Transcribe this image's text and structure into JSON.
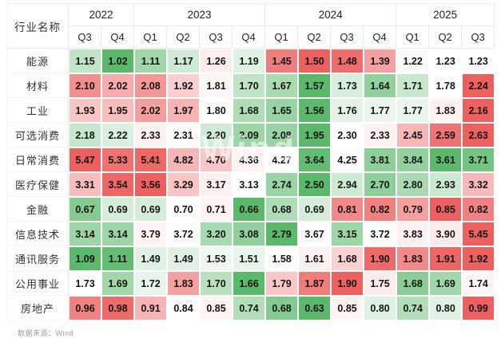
{
  "watermark": {
    "text": "Wind"
  },
  "footer": {
    "source_note": "数据来源：Wind"
  },
  "chart_data": {
    "type": "heatmap",
    "corner_label": "行业名称",
    "year_groups": [
      {
        "label": "2022",
        "span": 2
      },
      {
        "label": "2023",
        "span": 4
      },
      {
        "label": "2024",
        "span": 4
      },
      {
        "label": "2025",
        "span": 3
      }
    ],
    "quarters": [
      "Q3",
      "Q4",
      "Q1",
      "Q2",
      "Q3",
      "Q4",
      "Q1",
      "Q2",
      "Q3",
      "Q4",
      "Q1",
      "Q2",
      "Q3"
    ],
    "rows": [
      {
        "label": "能源",
        "values": [
          1.15,
          1.02,
          1.11,
          1.17,
          1.26,
          1.19,
          1.45,
          1.5,
          1.48,
          1.39,
          1.22,
          1.23,
          1.23
        ]
      },
      {
        "label": "材料",
        "values": [
          2.1,
          2.02,
          2.08,
          1.92,
          1.81,
          1.7,
          1.67,
          1.57,
          1.73,
          1.64,
          1.71,
          1.78,
          2.24
        ]
      },
      {
        "label": "工业",
        "values": [
          1.93,
          1.95,
          2.02,
          1.97,
          1.8,
          1.68,
          1.65,
          1.56,
          1.76,
          1.77,
          1.77,
          1.83,
          2.16
        ]
      },
      {
        "label": "可选消费",
        "values": [
          2.18,
          2.22,
          2.33,
          2.31,
          2.2,
          2.09,
          2.08,
          1.95,
          2.3,
          2.33,
          2.45,
          2.59,
          2.63
        ]
      },
      {
        "label": "日常消费",
        "values": [
          5.47,
          5.33,
          5.41,
          4.82,
          4.7,
          4.36,
          4.27,
          3.64,
          4.25,
          3.81,
          3.84,
          3.61,
          3.71
        ]
      },
      {
        "label": "医疗保健",
        "values": [
          3.31,
          3.54,
          3.56,
          3.29,
          3.17,
          3.13,
          2.74,
          2.5,
          2.94,
          2.7,
          2.8,
          2.93,
          3.32
        ]
      },
      {
        "label": "金融",
        "values": [
          0.67,
          0.69,
          0.69,
          0.7,
          0.71,
          0.66,
          0.68,
          0.69,
          0.81,
          0.82,
          0.79,
          0.85,
          0.82
        ]
      },
      {
        "label": "信息技术",
        "values": [
          3.14,
          3.14,
          3.79,
          3.72,
          3.2,
          3.08,
          2.79,
          3.67,
          3.15,
          3.72,
          3.83,
          3.9,
          5.45
        ]
      },
      {
        "label": "通讯服务",
        "values": [
          1.09,
          1.11,
          1.49,
          1.49,
          1.53,
          1.51,
          1.58,
          1.61,
          1.68,
          1.9,
          1.83,
          1.91,
          1.92
        ]
      },
      {
        "label": "公用事业",
        "values": [
          1.73,
          1.69,
          1.72,
          1.83,
          1.7,
          1.66,
          1.79,
          1.87,
          1.9,
          1.75,
          1.68,
          1.69,
          1.74
        ]
      },
      {
        "label": "房地产",
        "values": [
          0.96,
          0.98,
          0.91,
          0.84,
          0.85,
          0.74,
          0.68,
          0.63,
          0.85,
          0.8,
          0.74,
          0.8,
          0.99
        ]
      }
    ],
    "color_scale": {
      "low_color": "#5bb96c",
      "mid_color": "#ffffff",
      "high_color": "#ed6060",
      "normalization": "per-row, median-centered"
    },
    "value_format": "2-decimal",
    "grid": "white 2px gaps between cells",
    "legend_position": "none"
  }
}
